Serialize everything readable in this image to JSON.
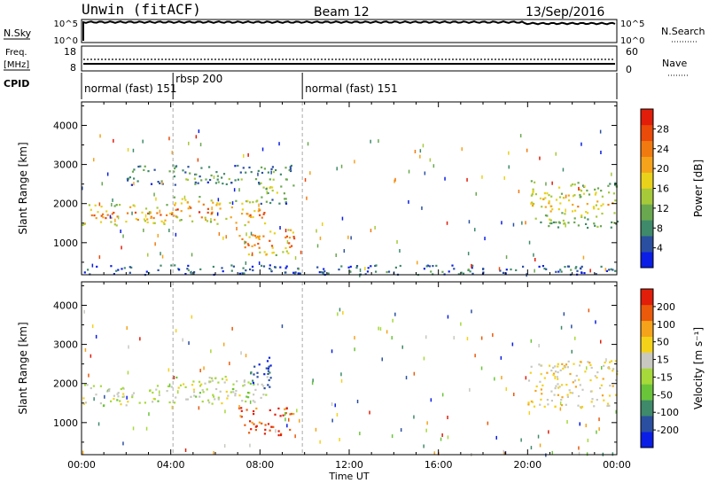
{
  "header": {
    "radar": "Unwin (fitACF)",
    "beam": "Beam 12",
    "date": "13/Sep/2016"
  },
  "top_panels": {
    "nsky": {
      "label": "N.Sky",
      "ticks": [
        "10^5",
        "10^0"
      ],
      "right_ticks": [
        "10^5",
        "10^0"
      ]
    },
    "nsearch_label": "N.Search",
    "freq": {
      "label_1": "Freq.",
      "label_2": "[MHz]",
      "ticks": [
        "18",
        "8"
      ]
    },
    "nave": {
      "label": "Nave",
      "ticks": [
        "60",
        "0"
      ]
    },
    "cpid": {
      "label": "CPID",
      "segments": [
        {
          "label": "normal (fast) 151",
          "start_h": 0
        },
        {
          "label": "rbsp 200",
          "start_h": 4.1
        },
        {
          "label": "normal (fast) 151",
          "start_h": 9.9
        }
      ]
    }
  },
  "chart_data": [
    {
      "type": "heatmap",
      "name": "power",
      "ylabel": "Slant Range [km]",
      "xlabel": "",
      "x_range_hours": [
        0,
        24
      ],
      "ylim": [
        180,
        4600
      ],
      "yticks": [
        1000,
        2000,
        3000,
        4000
      ],
      "colorbar": {
        "label": "Power [dB]",
        "ticks": [
          "4",
          "8",
          "12",
          "16",
          "20",
          "24",
          "28"
        ],
        "colors": [
          "#0a1ee6",
          "#2a4fa0",
          "#3f8a6a",
          "#6aa84f",
          "#a6c93a",
          "#e8d21a",
          "#f4a31a",
          "#f07a10",
          "#ea4a0a",
          "#e01e0a"
        ]
      },
      "regions": [
        {
          "t": [
            0,
            4
          ],
          "r": [
            1450,
            2000
          ],
          "level": 0.75
        },
        {
          "t": [
            4,
            6.5
          ],
          "r": [
            1500,
            2200
          ],
          "level": 0.8
        },
        {
          "t": [
            6.5,
            8.3
          ],
          "r": [
            1400,
            2100
          ],
          "level": 0.7
        },
        {
          "t": [
            7,
            9.5
          ],
          "r": [
            700,
            1400
          ],
          "level": 0.85
        },
        {
          "t": [
            8,
            9.5
          ],
          "r": [
            2000,
            3000
          ],
          "level": 0.4
        },
        {
          "t": [
            20,
            24
          ],
          "r": [
            1400,
            2600
          ],
          "level": 0.55
        },
        {
          "t": [
            2,
            8
          ],
          "r": [
            2500,
            3000
          ],
          "level": 0.3
        },
        {
          "t": [
            0,
            24
          ],
          "r": [
            200,
            450
          ],
          "level": 0.15
        }
      ]
    },
    {
      "type": "heatmap",
      "name": "velocity",
      "ylabel": "Slant Range [km]",
      "xlabel": "Time UT",
      "x_range_hours": [
        0,
        24
      ],
      "ylim": [
        180,
        4600
      ],
      "yticks": [
        1000,
        2000,
        3000,
        4000
      ],
      "xticks": [
        "00:00",
        "04:00",
        "08:00",
        "12:00",
        "16:00",
        "20:00",
        "00:00"
      ],
      "colorbar": {
        "label": "Velocity [m s⁻¹]",
        "ticks": [
          "200",
          "100",
          "50",
          "15",
          "-15",
          "-50",
          "-100",
          "-200"
        ],
        "colors": [
          "#0a1ee6",
          "#2a4fa0",
          "#3f8a6a",
          "#6ac43a",
          "#a6d93a",
          "#c8c8c0",
          "#f4d21a",
          "#f4a31a",
          "#ea5a0a",
          "#e01e0a"
        ]
      },
      "regions": [
        {
          "t": [
            0,
            4
          ],
          "r": [
            1450,
            2000
          ],
          "level": 0.0
        },
        {
          "t": [
            4,
            8.3
          ],
          "r": [
            1500,
            2200
          ],
          "level": 0.0
        },
        {
          "t": [
            7,
            9.5
          ],
          "r": [
            700,
            1400
          ],
          "level": 0.9
        },
        {
          "t": [
            7.5,
            8.5
          ],
          "r": [
            1900,
            2700
          ],
          "level": -0.8
        },
        {
          "t": [
            20,
            24
          ],
          "r": [
            1400,
            2600
          ],
          "level": 0.3
        }
      ]
    }
  ]
}
